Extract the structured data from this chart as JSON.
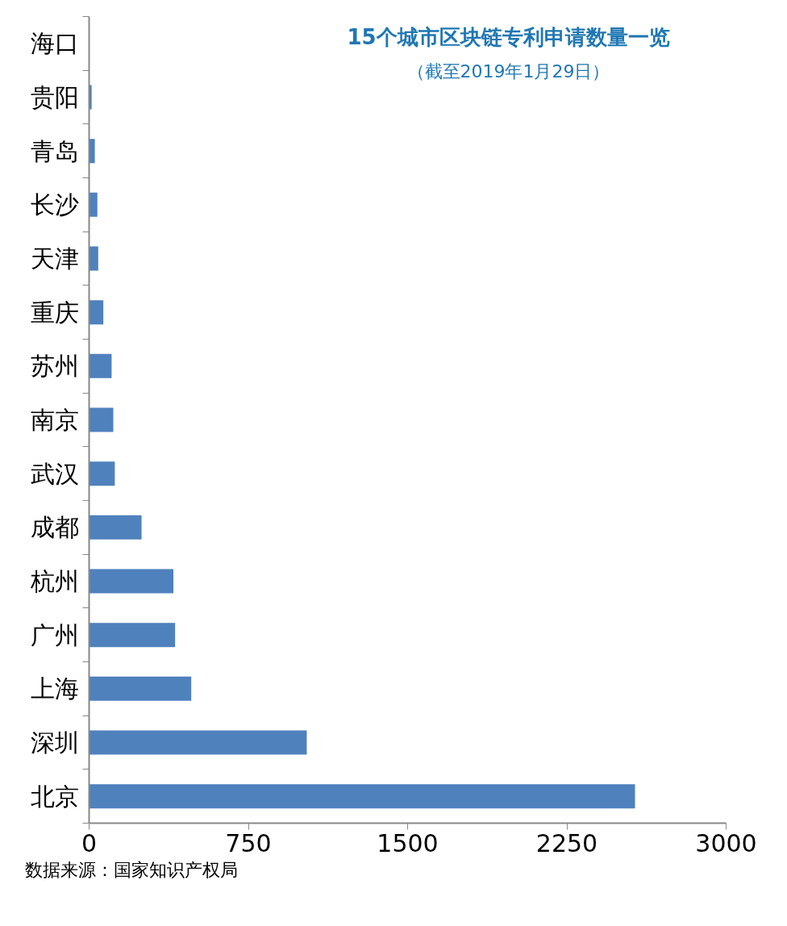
{
  "chart_data": {
    "type": "bar",
    "orientation": "horizontal",
    "title": "15个城市区块链专利申请数量一览",
    "subtitle": "（截至2019年1月29日）",
    "categories": [
      "海口",
      "贵阳",
      "青岛",
      "长沙",
      "天津",
      "重庆",
      "苏州",
      "南京",
      "武汉",
      "成都",
      "杭州",
      "广州",
      "上海",
      "深圳",
      "北京"
    ],
    "values": [
      0,
      12,
      27,
      39,
      43,
      67,
      106,
      114,
      121,
      247,
      397,
      405,
      481,
      1025,
      2571
    ],
    "color": "#4f81bd",
    "xlim": [
      0,
      3000
    ],
    "xticks": [
      0,
      750,
      1500,
      2250,
      3000
    ],
    "grid": false,
    "annotations": [
      "数据来源：国家知识产权局"
    ]
  }
}
